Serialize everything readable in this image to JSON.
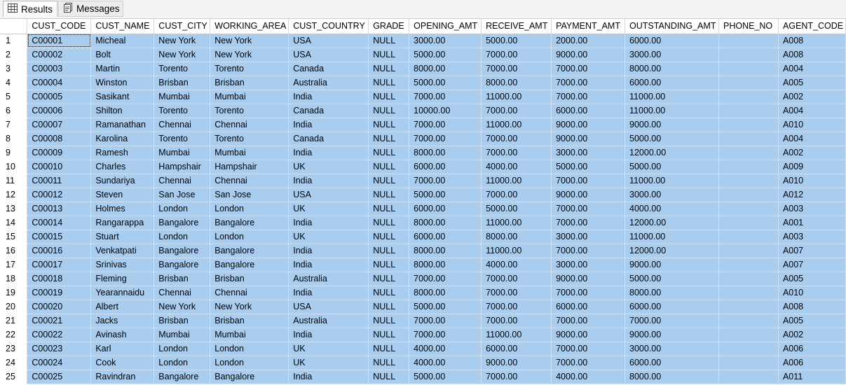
{
  "tabs": {
    "results": "Results",
    "messages": "Messages"
  },
  "columns": [
    "CUST_CODE",
    "CUST_NAME",
    "CUST_CITY",
    "WORKING_AREA",
    "CUST_COUNTRY",
    "GRADE",
    "OPENING_AMT",
    "RECEIVE_AMT",
    "PAYMENT_AMT",
    "OUTSTANDING_AMT",
    "PHONE_NO",
    "AGENT_CODE"
  ],
  "rows": [
    [
      "C00001",
      "Micheal",
      "New York",
      "New York",
      "USA",
      "NULL",
      "3000.00",
      "5000.00",
      "2000.00",
      "6000.00",
      "",
      "A008"
    ],
    [
      "C00002",
      "Bolt",
      "New York",
      "New York",
      "USA",
      "NULL",
      "5000.00",
      "7000.00",
      "9000.00",
      "3000.00",
      "",
      "A008"
    ],
    [
      "C00003",
      "Martin",
      "Torento",
      "Torento",
      "Canada",
      "NULL",
      "8000.00",
      "7000.00",
      "7000.00",
      "8000.00",
      "",
      "A004"
    ],
    [
      "C00004",
      "Winston",
      "Brisban",
      "Brisban",
      "Australia",
      "NULL",
      "5000.00",
      "8000.00",
      "7000.00",
      "6000.00",
      "",
      "A005"
    ],
    [
      "C00005",
      "Sasikant",
      "Mumbai",
      "Mumbai",
      "India",
      "NULL",
      "7000.00",
      "11000.00",
      "7000.00",
      "11000.00",
      "",
      "A002"
    ],
    [
      "C00006",
      "Shilton",
      "Torento",
      "Torento",
      "Canada",
      "NULL",
      "10000.00",
      "7000.00",
      "6000.00",
      "11000.00",
      "",
      "A004"
    ],
    [
      "C00007",
      "Ramanathan",
      "Chennai",
      "Chennai",
      "India",
      "NULL",
      "7000.00",
      "11000.00",
      "9000.00",
      "9000.00",
      "",
      "A010"
    ],
    [
      "C00008",
      "Karolina",
      "Torento",
      "Torento",
      "Canada",
      "NULL",
      "7000.00",
      "7000.00",
      "9000.00",
      "5000.00",
      "",
      "A004"
    ],
    [
      "C00009",
      "Ramesh",
      "Mumbai",
      "Mumbai",
      "India",
      "NULL",
      "8000.00",
      "7000.00",
      "3000.00",
      "12000.00",
      "",
      "A002"
    ],
    [
      "C00010",
      "Charles",
      "Hampshair",
      "Hampshair",
      "UK",
      "NULL",
      "6000.00",
      "4000.00",
      "5000.00",
      "5000.00",
      "",
      "A009"
    ],
    [
      "C00011",
      "Sundariya",
      "Chennai",
      "Chennai",
      "India",
      "NULL",
      "7000.00",
      "11000.00",
      "7000.00",
      "11000.00",
      "",
      "A010"
    ],
    [
      "C00012",
      "Steven",
      "San Jose",
      "San Jose",
      "USA",
      "NULL",
      "5000.00",
      "7000.00",
      "9000.00",
      "3000.00",
      "",
      "A012"
    ],
    [
      "C00013",
      "Holmes",
      "London",
      "London",
      "UK",
      "NULL",
      "6000.00",
      "5000.00",
      "7000.00",
      "4000.00",
      "",
      "A003"
    ],
    [
      "C00014",
      "Rangarappa",
      "Bangalore",
      "Bangalore",
      "India",
      "NULL",
      "8000.00",
      "11000.00",
      "7000.00",
      "12000.00",
      "",
      "A001"
    ],
    [
      "C00015",
      "Stuart",
      "London",
      "London",
      "UK",
      "NULL",
      "6000.00",
      "8000.00",
      "3000.00",
      "11000.00",
      "",
      "A003"
    ],
    [
      "C00016",
      "Venkatpati",
      "Bangalore",
      "Bangalore",
      "India",
      "NULL",
      "8000.00",
      "11000.00",
      "7000.00",
      "12000.00",
      "",
      "A007"
    ],
    [
      "C00017",
      "Srinivas",
      "Bangalore",
      "Bangalore",
      "India",
      "NULL",
      "8000.00",
      "4000.00",
      "3000.00",
      "9000.00",
      "",
      "A007"
    ],
    [
      "C00018",
      "Fleming",
      "Brisban",
      "Brisban",
      "Australia",
      "NULL",
      "7000.00",
      "7000.00",
      "9000.00",
      "5000.00",
      "",
      "A005"
    ],
    [
      "C00019",
      "Yearannaidu",
      "Chennai",
      "Chennai",
      "India",
      "NULL",
      "8000.00",
      "7000.00",
      "7000.00",
      "8000.00",
      "",
      "A010"
    ],
    [
      "C00020",
      "Albert",
      "New York",
      "New York",
      "USA",
      "NULL",
      "5000.00",
      "7000.00",
      "6000.00",
      "6000.00",
      "",
      "A008"
    ],
    [
      "C00021",
      "Jacks",
      "Brisban",
      "Brisban",
      "Australia",
      "NULL",
      "7000.00",
      "7000.00",
      "7000.00",
      "7000.00",
      "",
      "A005"
    ],
    [
      "C00022",
      "Avinash",
      "Mumbai",
      "Mumbai",
      "India",
      "NULL",
      "7000.00",
      "11000.00",
      "9000.00",
      "9000.00",
      "",
      "A002"
    ],
    [
      "C00023",
      "Karl",
      "London",
      "London",
      "UK",
      "NULL",
      "4000.00",
      "6000.00",
      "7000.00",
      "3000.00",
      "",
      "A006"
    ],
    [
      "C00024",
      "Cook",
      "London",
      "London",
      "UK",
      "NULL",
      "4000.00",
      "9000.00",
      "7000.00",
      "6000.00",
      "",
      "A006"
    ],
    [
      "C00025",
      "Ravindran",
      "Bangalore",
      "Bangalore",
      "India",
      "NULL",
      "5000.00",
      "7000.00",
      "4000.00",
      "8000.00",
      "",
      "A011"
    ]
  ],
  "icons": {
    "results": "grid-icon",
    "messages": "messages-icon"
  },
  "colors": {
    "selection": "#a8cdee",
    "header_bg": "#ffffff"
  }
}
